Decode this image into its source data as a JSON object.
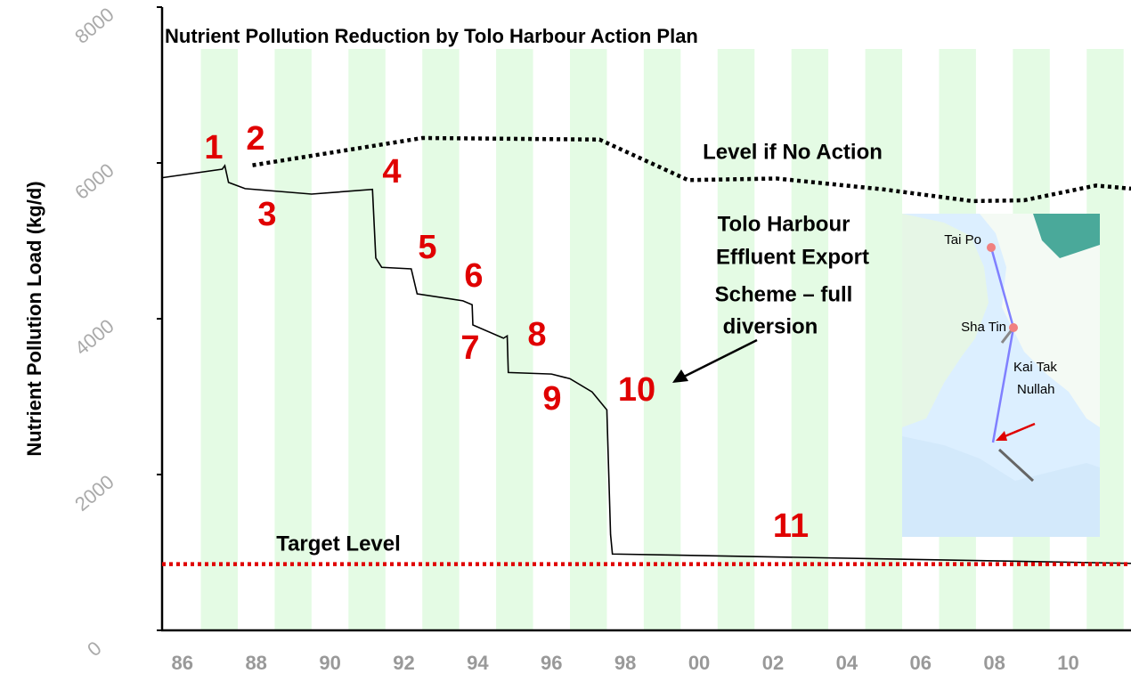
{
  "chart_data": {
    "type": "line",
    "title": "Nutrient Pollution Reduction by Tolo Harbour Action Plan",
    "y_label": "Nutrient Pollution Load (kg/d)",
    "xlim": [
      1985.45,
      2011.7
    ],
    "ylim": [
      0,
      8000
    ],
    "xticks": [
      {
        "value": 1986,
        "label": "86"
      },
      {
        "value": 1988,
        "label": "88"
      },
      {
        "value": 1990,
        "label": "90"
      },
      {
        "value": 1992,
        "label": "92"
      },
      {
        "value": 1994,
        "label": "94"
      },
      {
        "value": 1996,
        "label": "96"
      },
      {
        "value": 1998,
        "label": "98"
      },
      {
        "value": 2000,
        "label": "00"
      },
      {
        "value": 2002,
        "label": "02"
      },
      {
        "value": 2004,
        "label": "04"
      },
      {
        "value": 2006,
        "label": "06"
      },
      {
        "value": 2008,
        "label": "08"
      },
      {
        "value": 2010,
        "label": "10"
      }
    ],
    "yticks": [
      0,
      2000,
      4000,
      6000,
      8000
    ],
    "series": [
      {
        "color": "#000000",
        "line_style": "solid",
        "x": [
          1985.45,
          1987.08,
          1987.15,
          1987.25,
          1987.7,
          1989.5,
          1991.15,
          1991.24,
          1991.4,
          1992.2,
          1992.36,
          1993.6,
          1993.85,
          1993.87,
          1994.7,
          1994.8,
          1994.83,
          1996.0,
          1996.5,
          1997.1,
          1997.5,
          1997.6,
          1997.65,
          2011.7
        ],
        "values": [
          5810,
          5920,
          5965,
          5750,
          5670,
          5600,
          5660,
          4780,
          4660,
          4640,
          4320,
          4230,
          4180,
          3920,
          3750,
          3780,
          3310,
          3290,
          3230,
          3060,
          2830,
          1230,
          980,
          860
        ]
      },
      {
        "name": "Level if No Action",
        "color": "#000000",
        "line_style": "dotted",
        "x": [
          1987.9,
          1992.5,
          1997.3,
          1999.7,
          2002.1,
          2005.0,
          2007.4,
          2008.8,
          2010.75,
          2011.7
        ],
        "values": [
          5970,
          6320,
          6300,
          5780,
          5800,
          5660,
          5510,
          5520,
          5710,
          5670
        ]
      },
      {
        "name": "Target Level",
        "color": "#e00000",
        "line_style": "dotted",
        "x": [
          1985.45,
          2011.7
        ],
        "values": [
          850,
          850
        ]
      }
    ],
    "step_labels": [
      "1",
      "2",
      "3",
      "4",
      "5",
      "6",
      "7",
      "8",
      "9",
      "10",
      "11"
    ],
    "scheme_note": [
      "Tolo Harbour",
      "Effluent Export",
      "Scheme – full",
      "diversion"
    ],
    "map_labels": [
      "Tai Po",
      "Sha Tin",
      "Kai Tak",
      "Nullah"
    ]
  }
}
